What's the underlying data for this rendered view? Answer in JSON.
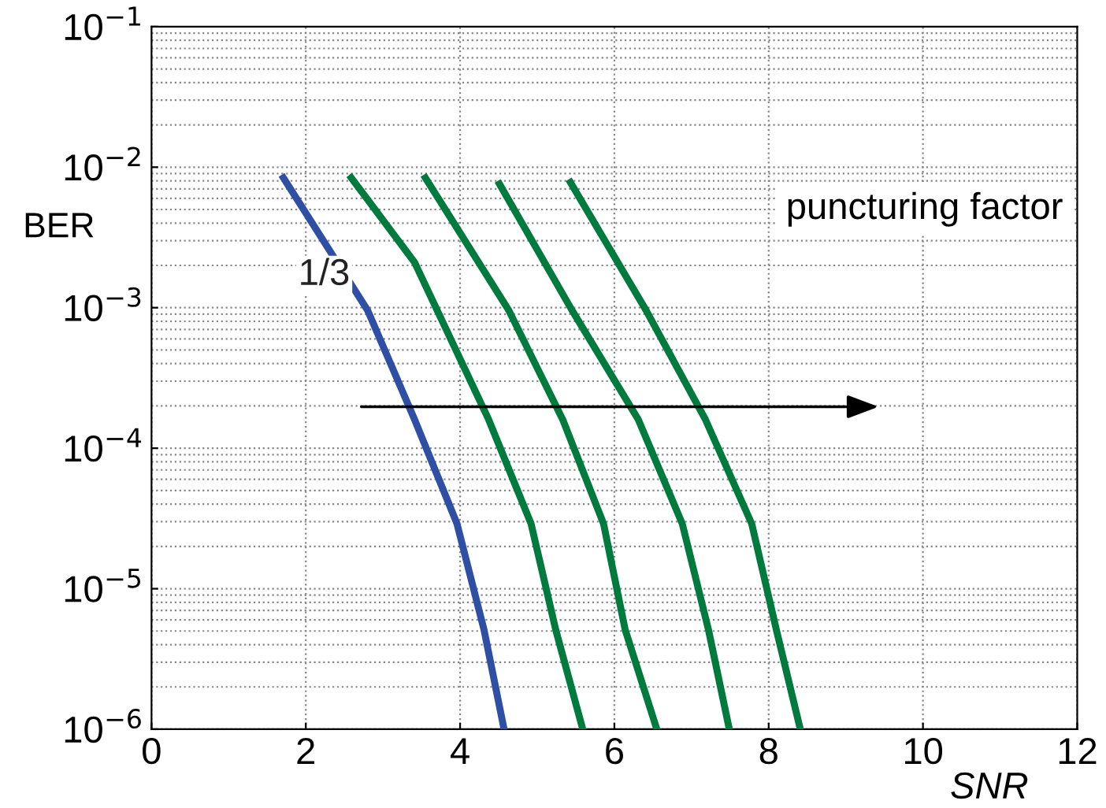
{
  "chart_data": {
    "type": "line",
    "xlabel": "SNR",
    "ylabel": "BER",
    "log": "y",
    "grid": true,
    "marker": "none",
    "line_style": "solid",
    "xlim": [
      0,
      12
    ],
    "xticks": [
      0,
      2,
      4,
      6,
      8,
      10,
      12
    ],
    "ylim": [
      1e-06,
      0.1
    ],
    "yticks": [
      {
        "value": 1e-06,
        "label": "10$^{−6}$"
      },
      {
        "value": 1e-05,
        "label": "10$^{−5}$"
      },
      {
        "value": 0.0001,
        "label": "10$^{−4}$"
      },
      {
        "value": 0.001,
        "label": "10$^{−3}$"
      },
      {
        "value": 0.01,
        "label": "10$^{−2}$"
      },
      {
        "value": 0.1,
        "label": "10$^{−1}$"
      }
    ],
    "series": [
      {
        "name": "1/3",
        "color": "#2e4fa3",
        "x": [
          1.71,
          2.8,
          3.41,
          3.96,
          4.31,
          4.57
        ],
        "values": [
          0.0084,
          0.00096,
          0.00016,
          2.9e-05,
          5.1e-06,
          1e-06
        ]
      },
      {
        "color": "#007a3d",
        "x": [
          2.59,
          3.41,
          4.37,
          4.92,
          5.24,
          5.59
        ],
        "values": [
          0.0084,
          0.0021,
          0.00016,
          2.9e-05,
          5.1e-06,
          1e-06
        ]
      },
      {
        "color": "#007a3d",
        "x": [
          3.55,
          4.63,
          5.33,
          5.86,
          6.14,
          6.55
        ],
        "values": [
          0.0084,
          0.00096,
          0.00016,
          2.9e-05,
          5.1e-06,
          1e-06
        ]
      },
      {
        "color": "#007a3d",
        "x": [
          4.51,
          5.45,
          6.31,
          6.88,
          7.22,
          7.49
        ],
        "values": [
          0.0076,
          0.00096,
          0.00016,
          2.9e-05,
          5.1e-06,
          1e-06
        ]
      },
      {
        "color": "#007a3d",
        "x": [
          5.43,
          6.41,
          7.18,
          7.78,
          8.1,
          8.41
        ],
        "values": [
          0.0078,
          0.00096,
          0.00016,
          2.9e-05,
          5.1e-06,
          1e-06
        ]
      }
    ],
    "annotations": [
      "puncturing factor"
    ]
  }
}
